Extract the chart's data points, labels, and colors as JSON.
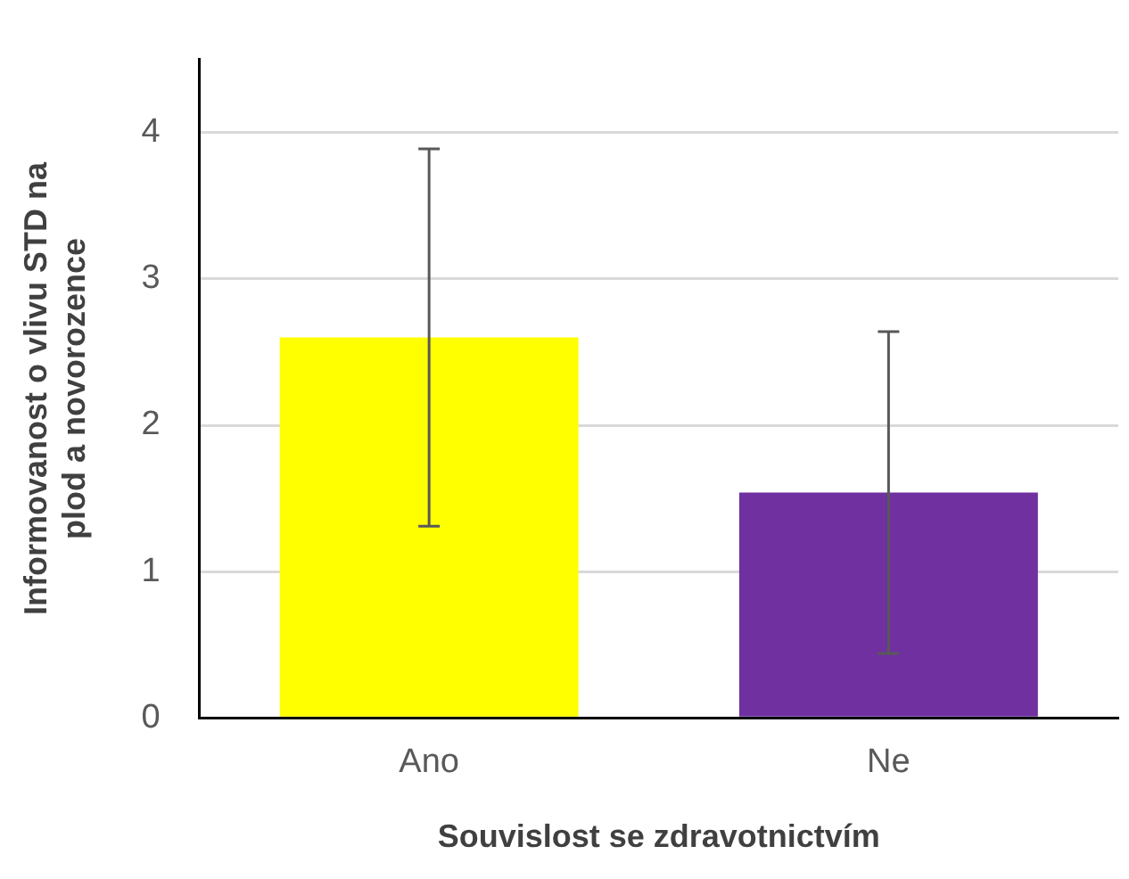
{
  "chart_data": {
    "type": "bar",
    "xlabel": "Souvislost se zdravotnictvím",
    "ylabel": "Informovanost o vlivu STD na plod a novorozence",
    "categories": [
      "Ano",
      "Ne"
    ],
    "values": [
      2.6,
      1.54
    ],
    "colors": [
      "#ffff00",
      "#7030a0"
    ],
    "errors": [
      1.29,
      1.1
    ],
    "ylim": [
      0,
      4.5
    ],
    "yticks": [
      0,
      1,
      2,
      3,
      4
    ],
    "grid": "y",
    "legend": false
  }
}
